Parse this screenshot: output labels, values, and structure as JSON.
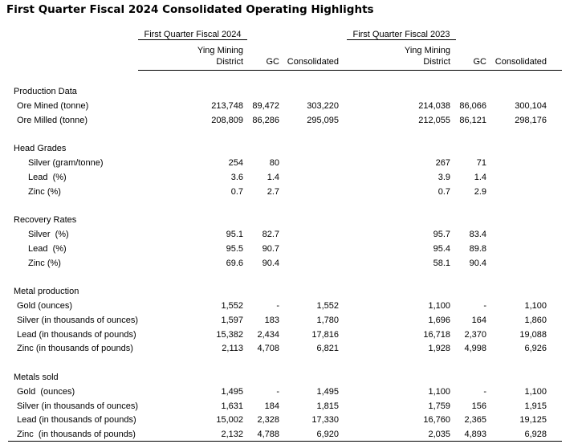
{
  "title": "First Quarter Fiscal 2024 Consolidated Operating Highlights",
  "column_groups": [
    {
      "title": "First Quarter Fiscal 2024",
      "columns": [
        "Ying Mining District",
        "GC",
        "Consolidated"
      ]
    },
    {
      "title": "First Quarter Fiscal 2023",
      "columns": [
        "Ying Mining District",
        "GC",
        "Consolidated"
      ]
    }
  ],
  "sections": [
    {
      "title": "Production Data",
      "rows": [
        {
          "label": "Ore Mined (tonne)",
          "values": [
            "213,748",
            "89,472",
            "303,220",
            "214,038",
            "86,066",
            "300,104"
          ]
        },
        {
          "label": "Ore Milled (tonne)",
          "values": [
            "208,809",
            "86,286",
            "295,095",
            "212,055",
            "86,121",
            "298,176"
          ]
        }
      ]
    },
    {
      "title": "Head Grades",
      "rows": [
        {
          "label": "Silver (gram/tonne)",
          "values": [
            "254",
            "80",
            null,
            "267",
            "71",
            null
          ]
        },
        {
          "label": "Lead  (%)",
          "values": [
            "3.6",
            "1.4",
            null,
            "3.9",
            "1.4",
            null
          ]
        },
        {
          "label": "Zinc (%)",
          "values": [
            "0.7",
            "2.7",
            null,
            "0.7",
            "2.9",
            null
          ]
        }
      ]
    },
    {
      "title": "Recovery Rates",
      "rows": [
        {
          "label": "Silver  (%)",
          "values": [
            "95.1",
            "82.7",
            null,
            "95.7",
            "83.4",
            null
          ]
        },
        {
          "label": "Lead  (%)",
          "values": [
            "95.5",
            "90.7",
            null,
            "95.4",
            "89.8",
            null
          ]
        },
        {
          "label": "Zinc (%)",
          "values": [
            "69.6",
            "90.4",
            null,
            "58.1",
            "90.4",
            null
          ]
        }
      ]
    },
    {
      "title": "Metal production",
      "rows": [
        {
          "label": "Gold (ounces)",
          "values": [
            "1,552",
            "-",
            "1,552",
            "1,100",
            "-",
            "1,100"
          ]
        },
        {
          "label": "Silver (in thousands of ounces)",
          "values": [
            "1,597",
            "183",
            "1,780",
            "1,696",
            "164",
            "1,860"
          ]
        },
        {
          "label": "Lead (in thousands of pounds)",
          "values": [
            "15,382",
            "2,434",
            "17,816",
            "16,718",
            "2,370",
            "19,088"
          ]
        },
        {
          "label": "Zinc (in thousands of pounds)",
          "values": [
            "2,113",
            "4,708",
            "6,821",
            "1,928",
            "4,998",
            "6,926"
          ]
        }
      ]
    },
    {
      "title": "Metals sold",
      "rows": [
        {
          "label": "Gold  (ounces)",
          "values": [
            "1,495",
            "-",
            "1,495",
            "1,100",
            "-",
            "1,100"
          ]
        },
        {
          "label": "Silver (in thousands of ounces)",
          "values": [
            "1,631",
            "184",
            "1,815",
            "1,759",
            "156",
            "1,915"
          ]
        },
        {
          "label": "Lead (in thousands of pounds)",
          "values": [
            "15,002",
            "2,328",
            "17,330",
            "16,760",
            "2,365",
            "19,125"
          ]
        },
        {
          "label": "Zinc  (in thousands of pounds)",
          "values": [
            "2,132",
            "4,788",
            "6,920",
            "2,035",
            "4,893",
            "6,928"
          ]
        }
      ]
    }
  ]
}
